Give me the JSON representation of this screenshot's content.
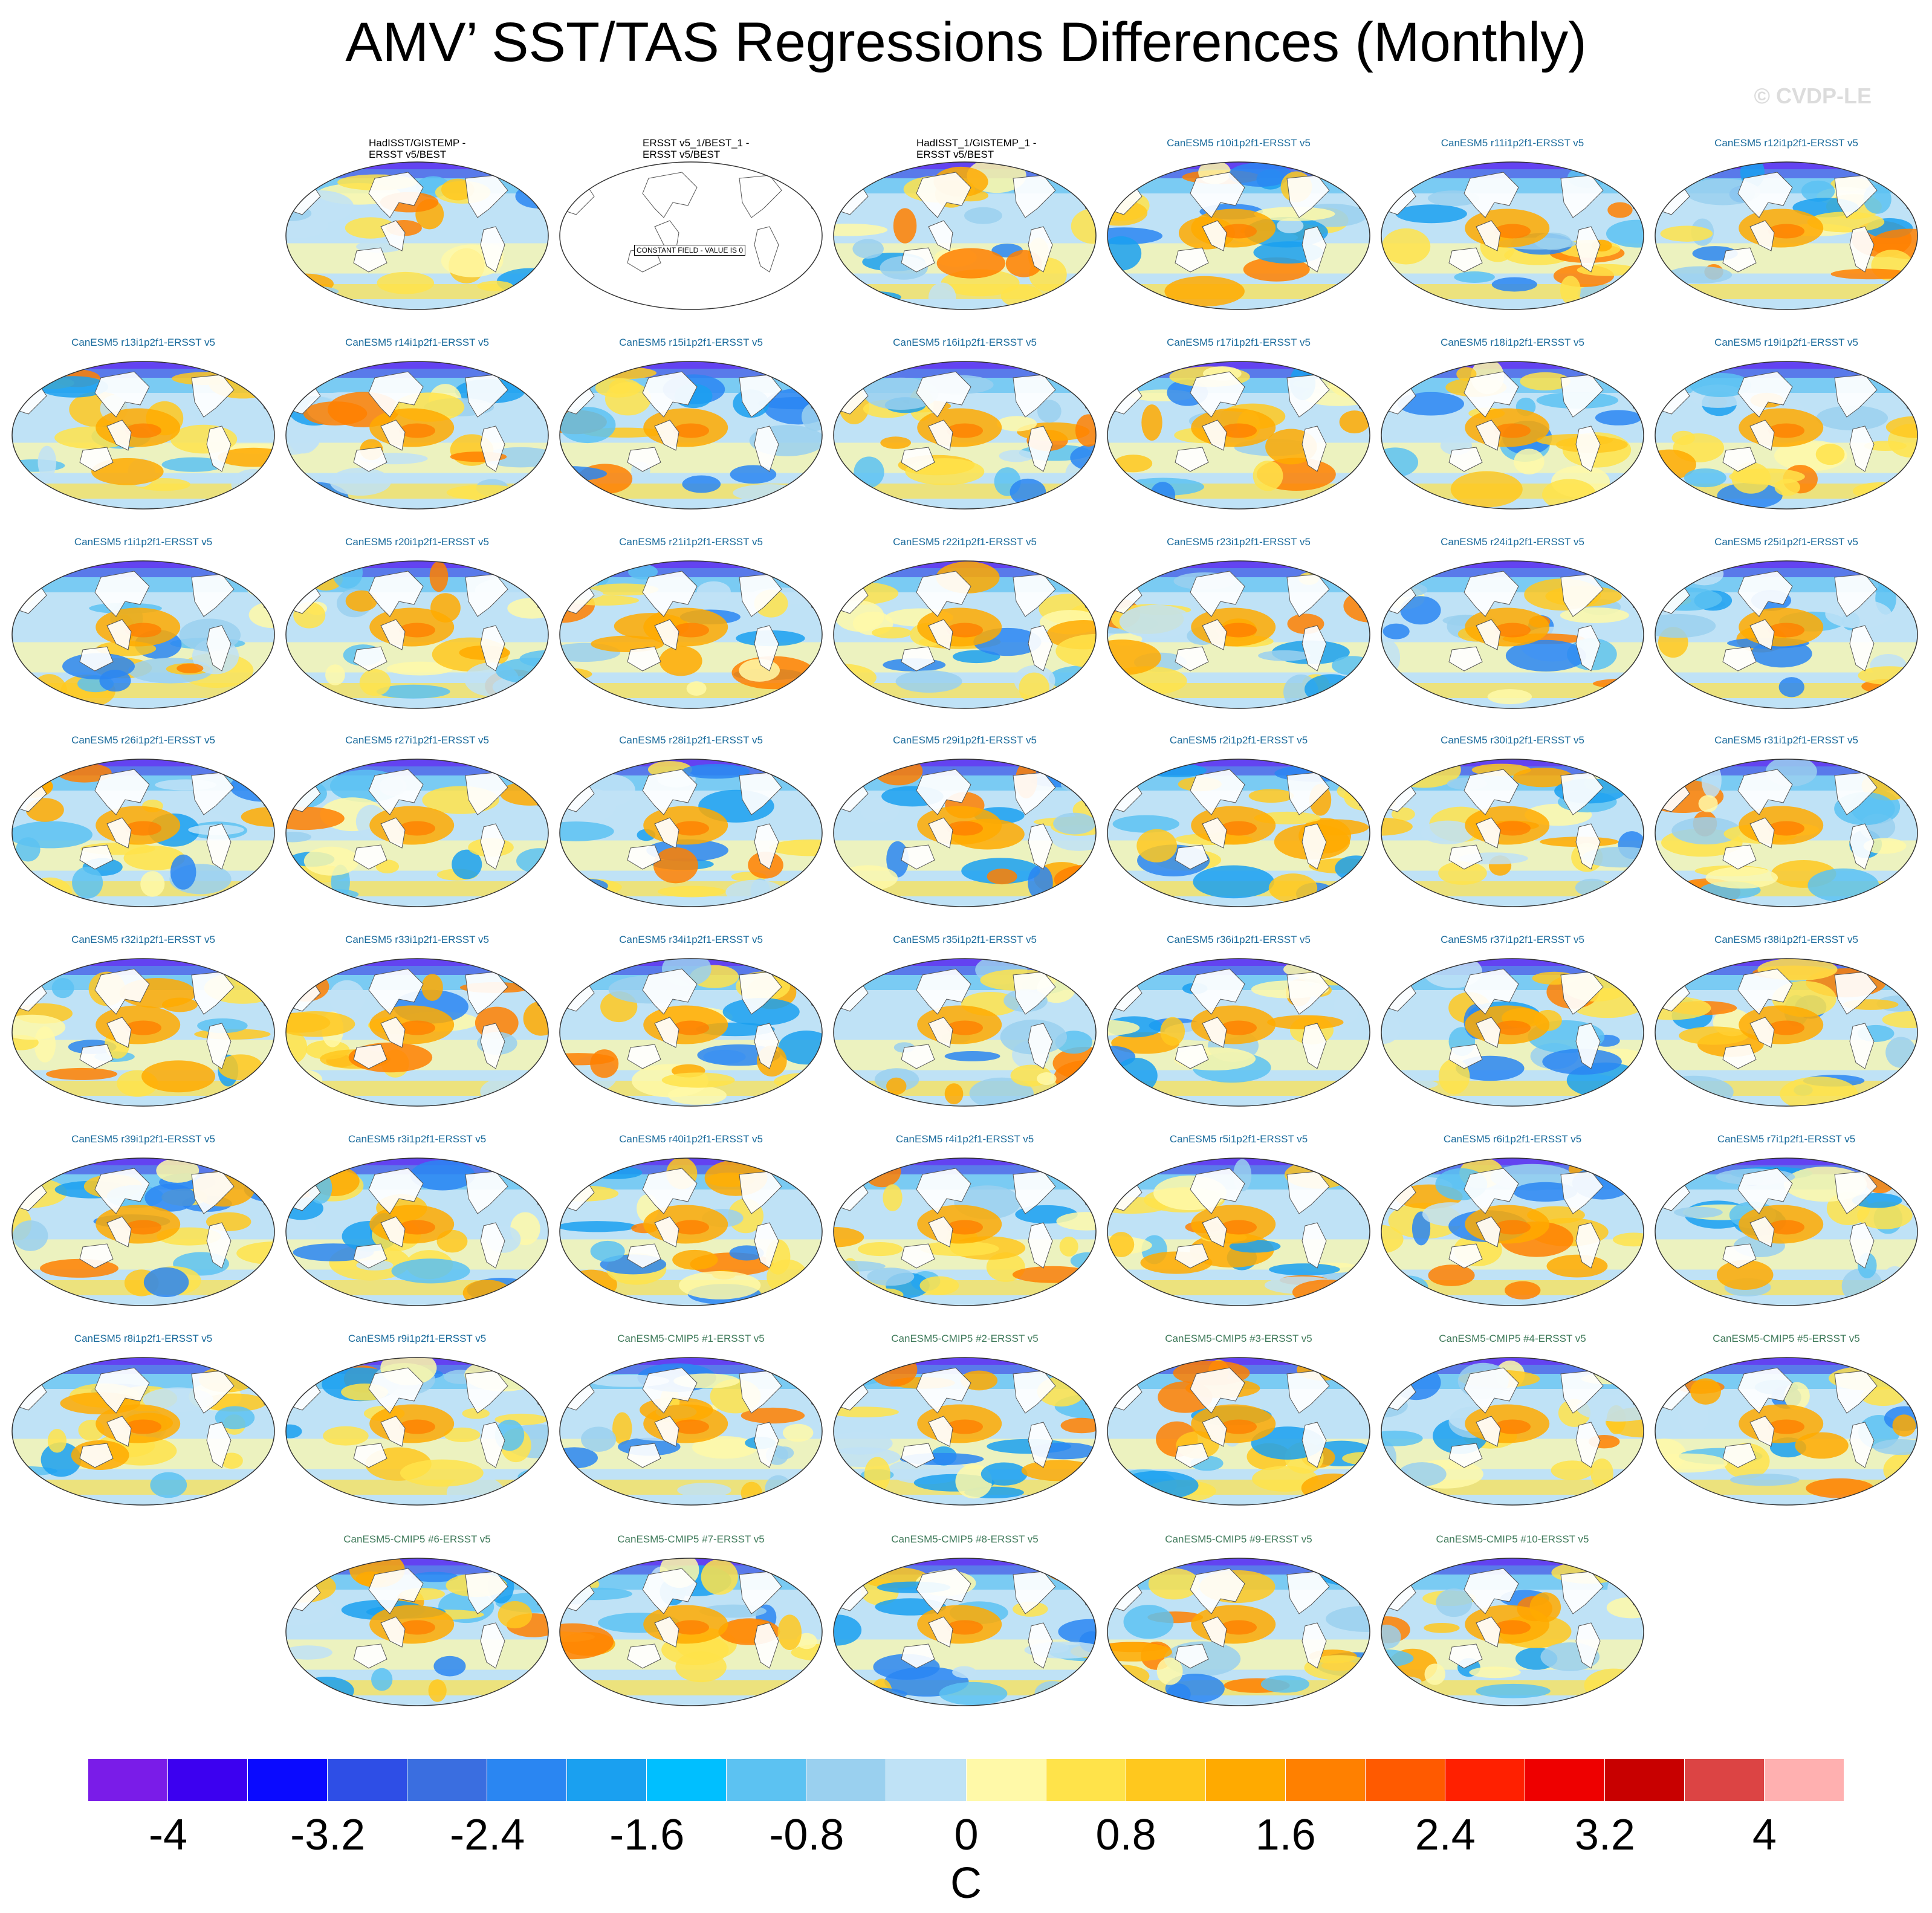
{
  "title": "AMV’ SST/TAS Regressions Differences (Monthly)",
  "credit": "© CVDP-LE",
  "constant_field_text": "CONSTANT FIELD - VALUE IS 0",
  "colorbar": {
    "units": "C",
    "colors": [
      "#7a1ce8",
      "#3c00f0",
      "#0a0aff",
      "#2e4ee6",
      "#3a6ee0",
      "#2a86f2",
      "#1aa0f0",
      "#00bfff",
      "#5cc2f2",
      "#9ad0ef",
      "#bfe2f6",
      "#fff9a8",
      "#ffe34a",
      "#ffc81e",
      "#ffaa00",
      "#ff8000",
      "#ff5a00",
      "#ff2000",
      "#ee0000",
      "#c80000",
      "#dc4444",
      "#ffb0b0"
    ],
    "tick_labels": [
      "-4",
      "-3.2",
      "-2.4",
      "-1.6",
      "-0.8",
      "0",
      "0.8",
      "1.6",
      "2.4",
      "3.2",
      "4"
    ]
  },
  "panels": [
    {
      "label": "HadISST/GISTEMP -\nERSST v5/BEST",
      "kind": "obs"
    },
    {
      "label": "ERSST v5_1/BEST_1 -\nERSST v5/BEST",
      "kind": "obs",
      "constant": true
    },
    {
      "label": "HadISST_1/GISTEMP_1 -\nERSST v5/BEST",
      "kind": "obs"
    },
    {
      "label": "CanESM5 r10i1p2f1-ERSST v5",
      "kind": "model"
    },
    {
      "label": "CanESM5 r11i1p2f1-ERSST v5",
      "kind": "model"
    },
    {
      "label": "CanESM5 r12i1p2f1-ERSST v5",
      "kind": "model"
    },
    {
      "label": "CanESM5 r13i1p2f1-ERSST v5",
      "kind": "model"
    },
    {
      "label": "CanESM5 r14i1p2f1-ERSST v5",
      "kind": "model"
    },
    {
      "label": "CanESM5 r15i1p2f1-ERSST v5",
      "kind": "model"
    },
    {
      "label": "CanESM5 r16i1p2f1-ERSST v5",
      "kind": "model"
    },
    {
      "label": "CanESM5 r17i1p2f1-ERSST v5",
      "kind": "model"
    },
    {
      "label": "CanESM5 r18i1p2f1-ERSST v5",
      "kind": "model"
    },
    {
      "label": "CanESM5 r19i1p2f1-ERSST v5",
      "kind": "model"
    },
    {
      "label": "CanESM5 r1i1p2f1-ERSST v5",
      "kind": "model"
    },
    {
      "label": "CanESM5 r20i1p2f1-ERSST v5",
      "kind": "model"
    },
    {
      "label": "CanESM5 r21i1p2f1-ERSST v5",
      "kind": "model"
    },
    {
      "label": "CanESM5 r22i1p2f1-ERSST v5",
      "kind": "model"
    },
    {
      "label": "CanESM5 r23i1p2f1-ERSST v5",
      "kind": "model"
    },
    {
      "label": "CanESM5 r24i1p2f1-ERSST v5",
      "kind": "model"
    },
    {
      "label": "CanESM5 r25i1p2f1-ERSST v5",
      "kind": "model"
    },
    {
      "label": "CanESM5 r26i1p2f1-ERSST v5",
      "kind": "model"
    },
    {
      "label": "CanESM5 r27i1p2f1-ERSST v5",
      "kind": "model"
    },
    {
      "label": "CanESM5 r28i1p2f1-ERSST v5",
      "kind": "model"
    },
    {
      "label": "CanESM5 r29i1p2f1-ERSST v5",
      "kind": "model"
    },
    {
      "label": "CanESM5 r2i1p2f1-ERSST v5",
      "kind": "model"
    },
    {
      "label": "CanESM5 r30i1p2f1-ERSST v5",
      "kind": "model"
    },
    {
      "label": "CanESM5 r31i1p2f1-ERSST v5",
      "kind": "model"
    },
    {
      "label": "CanESM5 r32i1p2f1-ERSST v5",
      "kind": "model"
    },
    {
      "label": "CanESM5 r33i1p2f1-ERSST v5",
      "kind": "model"
    },
    {
      "label": "CanESM5 r34i1p2f1-ERSST v5",
      "kind": "model"
    },
    {
      "label": "CanESM5 r35i1p2f1-ERSST v5",
      "kind": "model"
    },
    {
      "label": "CanESM5 r36i1p2f1-ERSST v5",
      "kind": "model"
    },
    {
      "label": "CanESM5 r37i1p2f1-ERSST v5",
      "kind": "model"
    },
    {
      "label": "CanESM5 r38i1p2f1-ERSST v5",
      "kind": "model"
    },
    {
      "label": "CanESM5 r39i1p2f1-ERSST v5",
      "kind": "model"
    },
    {
      "label": "CanESM5 r3i1p2f1-ERSST v5",
      "kind": "model"
    },
    {
      "label": "CanESM5 r40i1p2f1-ERSST v5",
      "kind": "model"
    },
    {
      "label": "CanESM5 r4i1p2f1-ERSST v5",
      "kind": "model"
    },
    {
      "label": "CanESM5 r5i1p2f1-ERSST v5",
      "kind": "model"
    },
    {
      "label": "CanESM5 r6i1p2f1-ERSST v5",
      "kind": "model"
    },
    {
      "label": "CanESM5 r7i1p2f1-ERSST v5",
      "kind": "model"
    },
    {
      "label": "CanESM5 r8i1p2f1-ERSST v5",
      "kind": "model"
    },
    {
      "label": "CanESM5 r9i1p2f1-ERSST v5",
      "kind": "model"
    },
    {
      "label": "CanESM5-CMIP5 #1-ERSST v5",
      "kind": "cmip5"
    },
    {
      "label": "CanESM5-CMIP5 #2-ERSST v5",
      "kind": "cmip5"
    },
    {
      "label": "CanESM5-CMIP5 #3-ERSST v5",
      "kind": "cmip5"
    },
    {
      "label": "CanESM5-CMIP5 #4-ERSST v5",
      "kind": "cmip5"
    },
    {
      "label": "CanESM5-CMIP5 #5-ERSST v5",
      "kind": "cmip5"
    },
    {
      "label": "CanESM5-CMIP5 #6-ERSST v5",
      "kind": "cmip5"
    },
    {
      "label": "CanESM5-CMIP5 #7-ERSST v5",
      "kind": "cmip5"
    },
    {
      "label": "CanESM5-CMIP5 #8-ERSST v5",
      "kind": "cmip5"
    },
    {
      "label": "CanESM5-CMIP5 #9-ERSST v5",
      "kind": "cmip5"
    },
    {
      "label": "CanESM5-CMIP5 #10-ERSST v5",
      "kind": "cmip5"
    }
  ]
}
